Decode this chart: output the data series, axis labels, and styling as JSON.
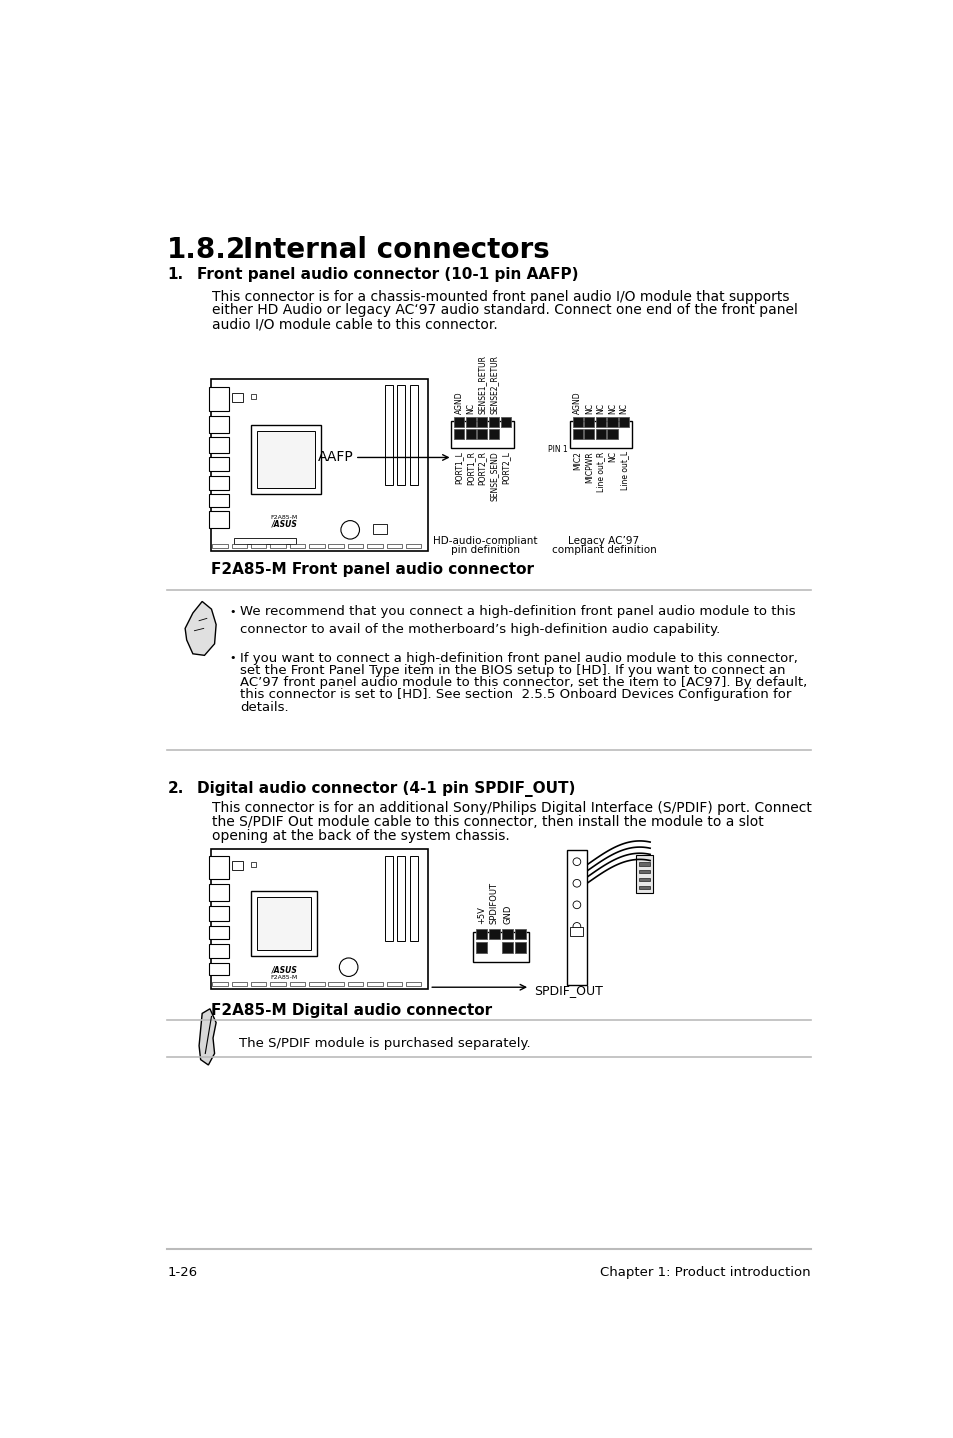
{
  "bg_color": "#ffffff",
  "title_num": "1.8.2",
  "title_text": "Internal connectors",
  "section1_num": "1.",
  "section1_title": "Front panel audio connector (10-1 pin AAFP)",
  "section1_body_line1": "This connector is for a chassis-mounted front panel audio I/O module that supports",
  "section1_body_line2": "either HD Audio or legacy AC‘97 audio standard. Connect one end of the front panel",
  "section1_body_line3": "audio I/O module cable to this connector.",
  "caption1": "F2A85-M Front panel audio connector",
  "note1_bullet1": "We recommend that you connect a high-definition front panel audio module to this\nconnector to avail of the motherboard’s high-definition audio capability.",
  "note1_bullet2_parts": [
    [
      "normal",
      "If you want to connect a high-definition front panel audio module to this connector,\nset the "
    ],
    [
      "bold",
      "Front Panel Type"
    ],
    [
      "normal",
      " item in the BIOS setup to "
    ],
    [
      "bold",
      "[HD]"
    ],
    [
      "normal",
      ". If you want to connect an\nAC’97 front panel audio module to this connector, set the item to "
    ],
    [
      "bold",
      "[AC97]"
    ],
    [
      "normal",
      ". By default,\nthis connector is set to "
    ],
    [
      "bold",
      "[HD]"
    ],
    [
      "normal",
      ". See section "
    ],
    [
      "bold",
      "2.5.5 Onboard Devices Configuration"
    ],
    [
      "normal",
      " for\ndetails."
    ]
  ],
  "section2_num": "2.",
  "section2_title": "Digital audio connector (4-1 pin SPDIF_OUT)",
  "section2_body_line1": "This connector is for an additional Sony/Philips Digital Interface (S/PDIF) port. Connect",
  "section2_body_line2": "the S/PDIF Out module cable to this connector, then install the module to a slot",
  "section2_body_line3": "opening at the back of the system chassis.",
  "caption2": "F2A85-M Digital audio connector",
  "note2_text": "The S/PDIF module is purchased separately.",
  "footer_left": "1-26",
  "footer_right": "Chapter 1: Product introduction",
  "hd_top_labels": [
    "AGND",
    "NC",
    "SENSE1_RETUR",
    "SENSE2_RETUR"
  ],
  "hd_bot_labels": [
    "PORT1_L",
    "PORT1_R",
    "PORT2_R",
    "SENSE_SEND",
    "PORT2_L"
  ],
  "leg_top_labels": [
    "AGND",
    "NC",
    "NC",
    "NC",
    "NC"
  ],
  "leg_bot_labels": [
    "MIC2",
    "MICPWR",
    "Line out_R",
    "NC",
    "Line out_L"
  ],
  "spdif_labels": [
    "+5V",
    "SPDIFOUT",
    "GND"
  ]
}
